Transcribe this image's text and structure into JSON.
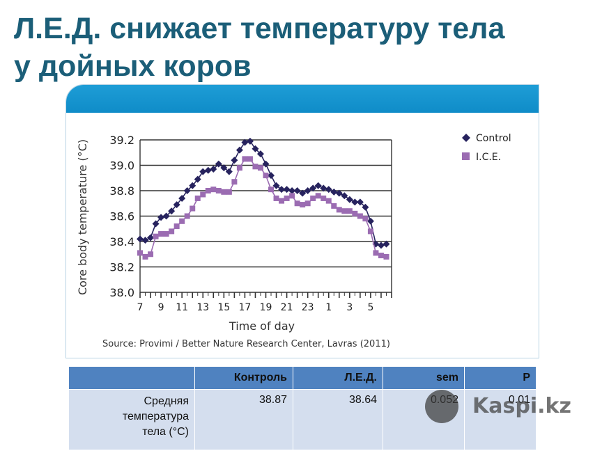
{
  "slide": {
    "title_line1": "Л.Е.Д. снижает температуру тела",
    "title_line2": "у дойных коров"
  },
  "chart_data": {
    "type": "line",
    "ylabel": "Core body temperature (°C)",
    "xlabel": "Time of day",
    "source": "Source: Provimi / Better Nature Research Center, Lavras (2011)",
    "ylim": [
      38.0,
      39.2
    ],
    "yticks": [
      "38.0",
      "38.2",
      "38.4",
      "38.6",
      "38.8",
      "39.0",
      "39.2"
    ],
    "xtick_labels": [
      "7",
      "9",
      "11",
      "13",
      "15",
      "17",
      "19",
      "21",
      "23",
      "1",
      "3",
      "5"
    ],
    "grid": "horizontal",
    "legend_position": "top-right",
    "x_hours_from_7": [
      0,
      0.5,
      1,
      1.5,
      2,
      2.5,
      3,
      3.5,
      4,
      4.5,
      5,
      5.5,
      6,
      6.5,
      7,
      7.5,
      8,
      8.5,
      9,
      9.5,
      10,
      10.5,
      11,
      11.5,
      12,
      12.5,
      13,
      13.5,
      14,
      14.5,
      15,
      15.5,
      16,
      16.5,
      17,
      17.5,
      18,
      18.5,
      19,
      19.5,
      20,
      20.5,
      21,
      21.5,
      22,
      22.5,
      23,
      23.5
    ],
    "series": [
      {
        "name": "Control",
        "color": "#27235e",
        "marker": "diamond",
        "values": [
          38.42,
          38.41,
          38.43,
          38.54,
          38.59,
          38.6,
          38.64,
          38.69,
          38.74,
          38.8,
          38.84,
          38.89,
          38.95,
          38.96,
          38.97,
          39.01,
          38.98,
          38.95,
          39.04,
          39.12,
          39.18,
          39.19,
          39.13,
          39.09,
          39.01,
          38.92,
          38.84,
          38.81,
          38.81,
          38.8,
          38.8,
          38.78,
          38.8,
          38.82,
          38.84,
          38.82,
          38.81,
          38.79,
          38.78,
          38.76,
          38.73,
          38.71,
          38.71,
          38.67,
          38.56,
          38.38,
          38.37,
          38.38
        ]
      },
      {
        "name": "I.C.E.",
        "color": "#9b6cb2",
        "marker": "square",
        "values": [
          38.31,
          38.28,
          38.3,
          38.44,
          38.46,
          38.46,
          38.48,
          38.52,
          38.56,
          38.6,
          38.66,
          38.74,
          38.77,
          38.8,
          38.81,
          38.8,
          38.79,
          38.79,
          38.87,
          38.98,
          39.05,
          39.05,
          38.99,
          38.98,
          38.92,
          38.81,
          38.74,
          38.72,
          38.74,
          38.76,
          38.7,
          38.69,
          38.7,
          38.74,
          38.76,
          38.74,
          38.72,
          38.68,
          38.65,
          38.64,
          38.64,
          38.62,
          38.6,
          38.58,
          38.48,
          38.31,
          38.29,
          38.28
        ]
      }
    ]
  },
  "table": {
    "headers": [
      "",
      "Контроль",
      "Л.Е.Д.",
      "sem",
      "P"
    ],
    "row_label_lines": [
      "Средняя",
      "температура",
      "тела (°C)"
    ],
    "row_values": [
      "38.87",
      "38.64",
      "0.052",
      "0.01"
    ]
  },
  "watermark": {
    "text": "Kaspi.kz"
  }
}
